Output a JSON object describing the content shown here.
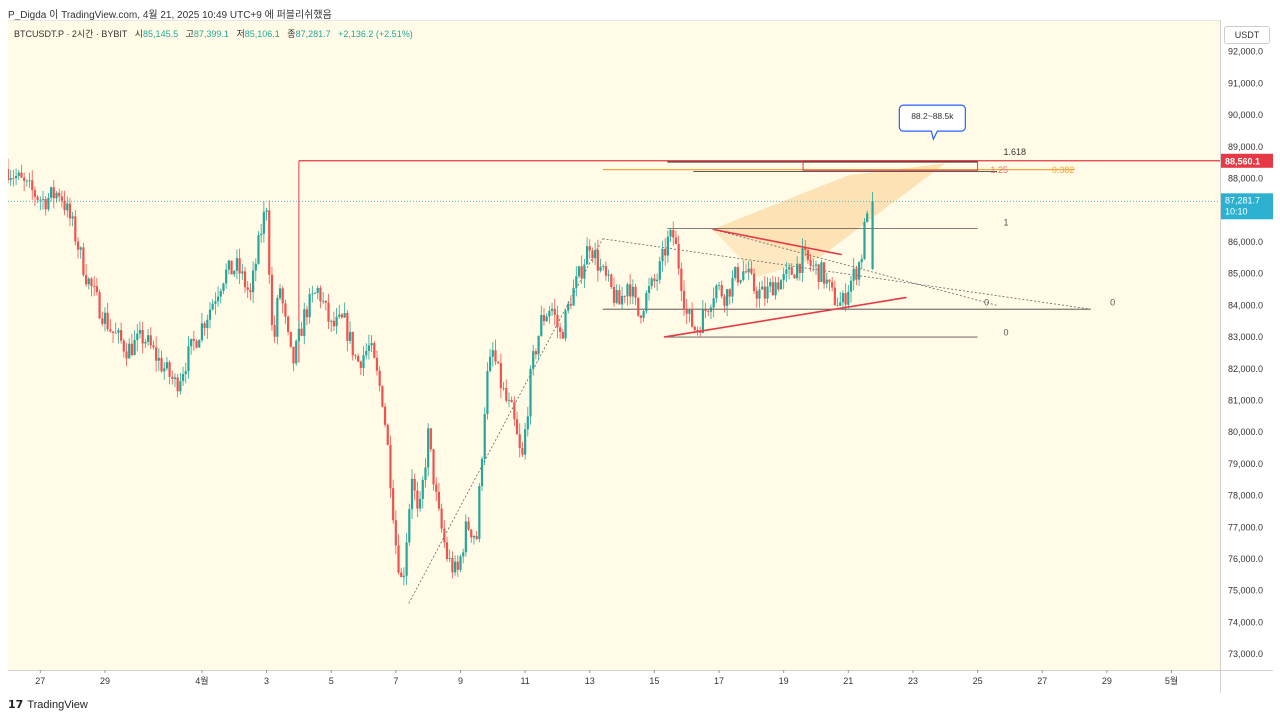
{
  "header": {
    "text": "P_Digda 이 TradingView.com, 4월 21, 2025 10:49 UTC+9 에 퍼블리쉬했음"
  },
  "legend": {
    "symbol": "BTCUSDT.P · 2시간 · BYBIT",
    "open_label": "시",
    "open": "85,145.5",
    "high_label": "고",
    "high": "87,399.1",
    "low_label": "저",
    "low": "85,106.1",
    "close_label": "종",
    "close": "87,281.7",
    "change": "+2,136.2 (+2.51%)"
  },
  "currency_button": "USDT",
  "footer": {
    "logo": "17",
    "brand": "TradingView"
  },
  "colors": {
    "up": "#26a69a",
    "down": "#ef5350",
    "resistance": "#e53945",
    "fib_orange": "#f7a53a",
    "target_zone": "#fbd9a3",
    "current_price_tag": "#2bb0cf",
    "callout_border": "#2962ff"
  },
  "chart_data": {
    "type": "candlestick",
    "title": "BTCUSDT.P · 2시간 · BYBIT",
    "ylim": [
      72500,
      93000
    ],
    "y_ticks": [
      "92,000.0",
      "91,000.0",
      "90,000.0",
      "89,000.0",
      "88,000.0",
      "87,000.0",
      "86,000.0",
      "85,000.0",
      "84,000.0",
      "83,000.0",
      "82,000.0",
      "81,000.0",
      "80,000.0",
      "79,000.0",
      "78,000.0",
      "77,000.0",
      "76,000.0",
      "75,000.0",
      "74,000.0",
      "73,000.0"
    ],
    "y_tick_values": [
      92000,
      91000,
      90000,
      89000,
      88000,
      87000,
      86000,
      85000,
      84000,
      83000,
      82000,
      81000,
      80000,
      79000,
      78000,
      77000,
      76000,
      75000,
      74000,
      73000
    ],
    "x_ticks": [
      "27",
      "29",
      "4월",
      "3",
      "5",
      "7",
      "9",
      "11",
      "13",
      "15",
      "17",
      "19",
      "21",
      "23",
      "25",
      "27",
      "29",
      "5월"
    ],
    "x_tick_days": [
      -5,
      -3,
      0,
      2,
      4,
      6,
      8,
      10,
      12,
      14,
      16,
      18,
      20,
      22,
      24,
      26,
      28,
      30
    ],
    "xlim_days": [
      -6.0,
      31.5
    ],
    "path_days": [
      -6.0,
      -5.4,
      -4.9,
      -4.4,
      -4.0,
      -3.6,
      -3.2,
      -2.8,
      -2.3,
      -1.8,
      -1.3,
      -0.8,
      -0.3,
      0.2,
      0.7,
      1.1,
      1.5,
      1.8,
      2.0,
      2.2,
      2.4,
      2.6,
      2.8,
      3.2,
      3.6,
      4.0,
      4.4,
      4.8,
      5.2,
      5.6,
      5.8,
      6.0,
      6.2,
      6.5,
      6.7,
      7.0,
      7.3,
      7.6,
      7.9,
      8.2,
      8.5,
      8.8,
      9.0,
      9.2,
      9.4,
      9.6,
      9.9,
      10.2,
      10.5,
      10.8,
      11.1,
      11.4,
      11.7,
      12.0,
      12.3,
      12.6,
      12.9,
      13.2,
      13.5,
      13.8,
      14.1,
      14.4,
      14.6,
      14.8,
      15.0,
      15.3,
      15.6,
      15.9,
      16.2,
      16.5,
      16.8,
      17.1,
      17.4,
      17.7,
      18.0,
      18.3,
      18.6,
      18.9,
      19.2,
      19.5,
      19.8,
      20.0,
      20.2,
      20.4,
      20.6,
      20.8
    ],
    "path_prices": [
      88300,
      87700,
      87300,
      87600,
      86500,
      85000,
      84000,
      83200,
      82600,
      83000,
      82200,
      81500,
      82700,
      83800,
      85000,
      85200,
      84300,
      86200,
      87200,
      82500,
      84700,
      83300,
      82100,
      83800,
      84500,
      83300,
      83500,
      82200,
      82700,
      81000,
      79000,
      76500,
      75100,
      78700,
      77100,
      79900,
      77500,
      76000,
      75500,
      77100,
      76700,
      81600,
      82500,
      81700,
      81000,
      80600,
      79000,
      82000,
      83500,
      84000,
      83000,
      84200,
      85000,
      86000,
      85200,
      84600,
      84000,
      84800,
      83700,
      84400,
      84900,
      86000,
      86200,
      85000,
      83700,
      83200,
      83900,
      84600,
      84300,
      84900,
      85100,
      84500,
      84300,
      84700,
      84800,
      85100,
      85500,
      85200,
      85000,
      84300,
      84000,
      84600,
      85000,
      85500,
      87281.7
    ],
    "seed_note": "Candles are rendered procedurally along the price path",
    "last_price": 87281.7,
    "last_price_label": "87,281.7",
    "countdown": "10:10",
    "resistance_price": 88560.1,
    "resistance_label": "88,560.1",
    "callout": "88.2~88.5k",
    "fib_labels": {
      "f1618": "1.618",
      "f125": "1.25",
      "f0382": "0.382",
      "f1": "1",
      "f0_mid": "0",
      "f0_right": "0",
      "f0_low": "0"
    },
    "levels": {
      "f1618": 88560,
      "f125": 88280,
      "f0382": 88300,
      "f1": 86420,
      "f0_mid": 83880,
      "f0_low": 83000,
      "apex_price": 83880
    },
    "triangle": {
      "upper": [
        [
          15.8,
          86400
        ],
        [
          19.8,
          85600
        ]
      ],
      "lower": [
        [
          14.3,
          83000
        ],
        [
          21.8,
          84250
        ]
      ]
    },
    "gray_lines": [
      [
        6.4,
        74600
      ],
      [
        12.4,
        86100
      ]
    ],
    "gray_line2": [
      [
        12.4,
        86100
      ],
      [
        27.5,
        83880
      ]
    ],
    "gray_line3": [
      [
        15.8,
        86400
      ],
      [
        24.6,
        84000
      ]
    ]
  }
}
